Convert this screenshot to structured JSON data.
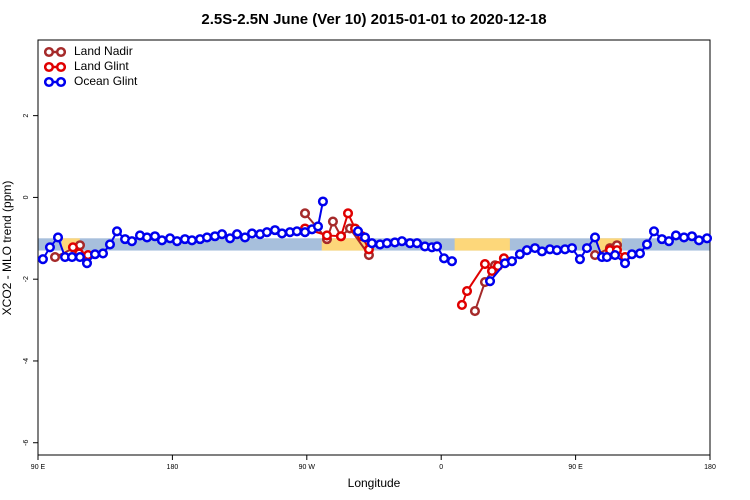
{
  "chart_data": {
    "type": "line",
    "title": "2.5S-2.5N June (Ver 10)   2015-01-01 to 2020-12-18",
    "xlabel": "Longitude",
    "ylabel": "XCO2 - MLO trend (ppm)",
    "xlim": [
      90,
      540
    ],
    "xticks": [
      {
        "value": 90,
        "label": "90 E"
      },
      {
        "value": 180,
        "label": "180"
      },
      {
        "value": 270,
        "label": "90 W"
      },
      {
        "value": 360,
        "label": "0"
      },
      {
        "value": 450,
        "label": "90 E"
      },
      {
        "value": 540,
        "label": "180"
      }
    ],
    "ylim": [
      -6.3,
      3.85
    ],
    "yticks": [
      -6,
      -4,
      -2,
      0,
      2
    ],
    "legend": "top-left",
    "band": {
      "ymin": -1.3,
      "ymax": -1.0,
      "color": "#a7bfdc"
    },
    "highlight_ranges": [
      [
        106,
        118
      ],
      [
        280,
        310
      ],
      [
        369,
        406
      ],
      [
        465,
        481
      ]
    ],
    "highlight_color": "#fdd77a",
    "series": [
      {
        "name": "Land Nadir",
        "color": "#a52a2a",
        "x": [
          101.4,
          118.1,
          null,
          268.8,
          283.5,
          287.5,
          292.9,
          298.9,
          311.6,
          null,
          382.6,
          389.3,
          396.0,
          null,
          463.0,
          473.0,
          477.7
        ],
        "values": [
          -1.46,
          -1.17,
          null,
          -0.39,
          -1.02,
          -0.59,
          -0.95,
          -0.76,
          -1.41,
          null,
          -2.78,
          -2.07,
          -1.66,
          null,
          -1.41,
          -1.24,
          -1.17
        ]
      },
      {
        "name": "Land Glint",
        "color": "#e00000",
        "x": [
          113.4,
          117.5,
          123.5,
          null,
          268.8,
          283.5,
          292.9,
          297.6,
          302.3,
          307.0,
          311.6,
          null,
          373.9,
          377.3,
          389.3,
          394.0,
          398.0,
          402.0,
          null,
          473.0,
          477.7,
          483.1
        ],
        "values": [
          -1.22,
          -1.37,
          -1.41,
          null,
          -0.76,
          -0.93,
          -0.95,
          -0.39,
          -0.76,
          -0.95,
          -1.27,
          null,
          -2.63,
          -2.29,
          -1.63,
          -1.8,
          -1.68,
          -1.49,
          null,
          -1.29,
          -1.29,
          -1.46
        ]
      },
      {
        "name": "Ocean Glint",
        "color": "#0000ee",
        "x": [
          93.3,
          98.0,
          103.4,
          108.1,
          112.8,
          118.1,
          122.8,
          128.2,
          133.5,
          138.2,
          142.9,
          148.3,
          152.9,
          158.3,
          163.0,
          168.3,
          173.0,
          178.4,
          183.1,
          188.4,
          193.1,
          198.5,
          203.2,
          208.5,
          213.2,
          218.6,
          223.3,
          228.6,
          233.3,
          238.7,
          243.3,
          248.7,
          253.4,
          258.7,
          263.4,
          268.8,
          273.5,
          277.5,
          280.8,
          null,
          304.3,
          309.0,
          313.6,
          319.0,
          323.7,
          329.0,
          333.7,
          339.1,
          343.8,
          349.1,
          353.8,
          357.2,
          361.9,
          367.2,
          null,
          392.7,
          402.7,
          407.4,
          412.7,
          417.4,
          422.8,
          427.5,
          432.8,
          437.5,
          442.9,
          447.6,
          452.9,
          457.6,
          463.0,
          467.7,
          471.0,
          476.4,
          483.1,
          487.7,
          493.1,
          497.8,
          502.5,
          507.8,
          512.5,
          517.2,
          522.6,
          527.9,
          532.6,
          538.0
        ],
        "values": [
          -1.51,
          -1.22,
          -0.98,
          -1.46,
          -1.46,
          -1.46,
          -1.61,
          -1.39,
          -1.37,
          -1.15,
          -0.83,
          -1.02,
          -1.07,
          -0.93,
          -0.98,
          -0.95,
          -1.05,
          -1.0,
          -1.07,
          -1.02,
          -1.05,
          -1.02,
          -0.98,
          -0.95,
          -0.9,
          -1.0,
          -0.9,
          -0.98,
          -0.88,
          -0.9,
          -0.85,
          -0.8,
          -0.88,
          -0.85,
          -0.83,
          -0.85,
          -0.78,
          -0.71,
          -0.1,
          null,
          -0.83,
          -0.98,
          -1.12,
          -1.15,
          -1.12,
          -1.1,
          -1.07,
          -1.12,
          -1.12,
          -1.2,
          -1.22,
          -1.2,
          -1.49,
          -1.56,
          null,
          -2.05,
          -1.61,
          -1.56,
          -1.39,
          -1.29,
          -1.24,
          -1.32,
          -1.27,
          -1.29,
          -1.27,
          -1.24,
          -1.51,
          -1.24,
          -0.98,
          -1.46,
          -1.46,
          -1.41,
          -1.61,
          -1.39,
          -1.37,
          -1.15,
          -0.83,
          -1.02,
          -1.07,
          -0.93,
          -0.98,
          -0.95,
          -1.05,
          -1.0
        ]
      }
    ]
  }
}
